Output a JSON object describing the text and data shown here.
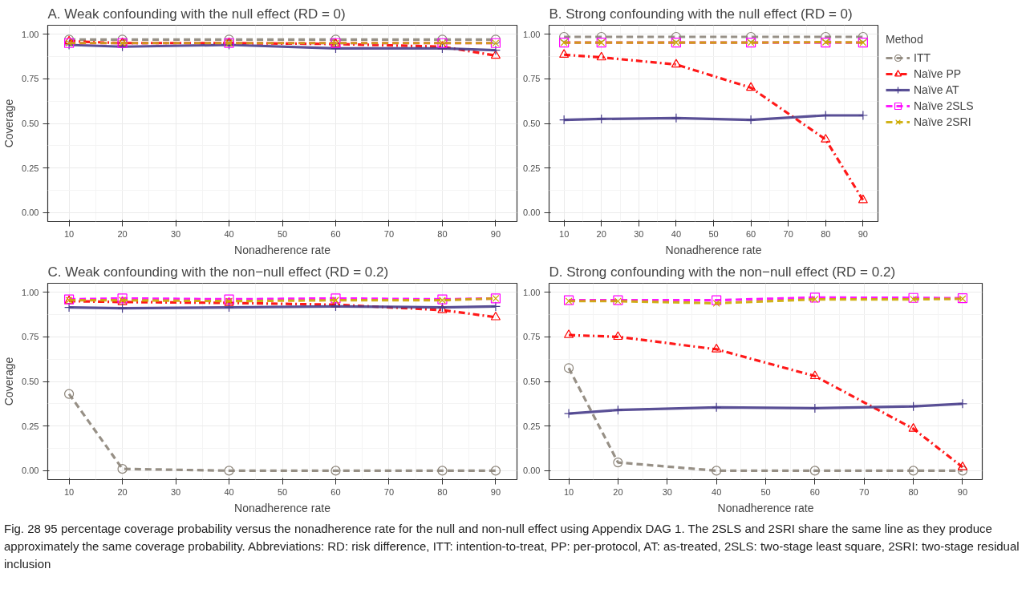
{
  "chart_data": [
    {
      "type": "line",
      "title": "A. Weak confounding with the null effect (RD = 0)",
      "xlabel": "Nonadherence rate",
      "ylabel": "Coverage",
      "x": [
        10,
        20,
        40,
        60,
        80,
        90
      ],
      "xlim": [
        6,
        94
      ],
      "xticks": [
        10,
        20,
        30,
        40,
        50,
        60,
        70,
        80,
        90
      ],
      "ylim": [
        -0.05,
        1.05
      ],
      "yticks": [
        {
          "value": 0,
          "label": "0.00"
        },
        {
          "value": 0.25,
          "label": "0.25"
        },
        {
          "value": 0.5,
          "label": "0.50"
        },
        {
          "value": 0.75,
          "label": "0.75"
        },
        {
          "value": 1,
          "label": "1.00"
        }
      ],
      "grid": true,
      "legend": false,
      "series": [
        {
          "color": "#8c8479",
          "line_style": "dashed",
          "marker": "circle",
          "values": [
            0.97,
            0.97,
            0.97,
            0.97,
            0.97,
            0.97
          ]
        },
        {
          "color": "#ff0000",
          "line_style": "dashdot",
          "marker": "triangle",
          "values": [
            0.96,
            0.95,
            0.95,
            0.945,
            0.93,
            0.88
          ]
        },
        {
          "color": "#483d8b",
          "line_style": "solid",
          "marker": "plus",
          "values": [
            0.94,
            0.93,
            0.94,
            0.92,
            0.92,
            0.91
          ]
        },
        {
          "color": "#ff00ff",
          "line_style": "dashed",
          "marker": "square",
          "values": [
            0.95,
            0.95,
            0.95,
            0.95,
            0.95,
            0.95
          ]
        },
        {
          "color": "#ccaa00",
          "line_style": "dashed",
          "marker": "cross",
          "values": [
            0.95,
            0.95,
            0.95,
            0.95,
            0.95,
            0.95
          ]
        }
      ]
    },
    {
      "type": "line",
      "title": "B. Strong confounding with the null effect (RD = 0)",
      "xlabel": "Nonadherence rate",
      "legend_title": "Method",
      "x": [
        10,
        20,
        40,
        60,
        80,
        90
      ],
      "xlim": [
        6,
        94
      ],
      "xticks": [
        10,
        20,
        30,
        40,
        50,
        60,
        70,
        80,
        90
      ],
      "ylim": [
        -0.05,
        1.05
      ],
      "yticks": [
        {
          "value": 0,
          "label": "0.00"
        },
        {
          "value": 0.25,
          "label": "0.25"
        },
        {
          "value": 0.5,
          "label": "0.50"
        },
        {
          "value": 0.75,
          "label": "0.75"
        },
        {
          "value": 1,
          "label": "1.00"
        }
      ],
      "grid": true,
      "legend": "right",
      "series": [
        {
          "name": "ITT",
          "color": "#8c8479",
          "line_style": "dashed",
          "marker": "circle",
          "values": [
            0.985,
            0.985,
            0.985,
            0.985,
            0.985,
            0.985
          ]
        },
        {
          "name": "Naïve PP",
          "color": "#ff0000",
          "line_style": "dashdot",
          "marker": "triangle",
          "values": [
            0.885,
            0.87,
            0.83,
            0.7,
            0.41,
            0.07
          ]
        },
        {
          "name": "Naïve AT",
          "color": "#483d8b",
          "line_style": "solid",
          "marker": "plus",
          "values": [
            0.52,
            0.525,
            0.53,
            0.52,
            0.545,
            0.545
          ]
        },
        {
          "name": "Naïve 2SLS",
          "color": "#ff00ff",
          "line_style": "dashed",
          "marker": "square",
          "values": [
            0.953,
            0.953,
            0.953,
            0.953,
            0.953,
            0.953
          ]
        },
        {
          "name": "Naïve 2SRI",
          "color": "#ccaa00",
          "line_style": "dashed",
          "marker": "cross",
          "values": [
            0.953,
            0.953,
            0.953,
            0.953,
            0.955,
            0.953
          ]
        }
      ]
    },
    {
      "type": "line",
      "title": "C. Weak confounding with the non−null effect (RD = 0.2)",
      "xlabel": "Nonadherence rate",
      "ylabel": "Coverage",
      "x": [
        10,
        20,
        40,
        60,
        80,
        90
      ],
      "xlim": [
        6,
        94
      ],
      "xticks": [
        10,
        20,
        30,
        40,
        50,
        60,
        70,
        80,
        90
      ],
      "ylim": [
        -0.05,
        1.05
      ],
      "yticks": [
        {
          "value": 0,
          "label": "0.00"
        },
        {
          "value": 0.25,
          "label": "0.25"
        },
        {
          "value": 0.5,
          "label": "0.50"
        },
        {
          "value": 0.75,
          "label": "0.75"
        },
        {
          "value": 1,
          "label": "1.00"
        }
      ],
      "grid": true,
      "legend": false,
      "series": [
        {
          "color": "#8c8479",
          "line_style": "dashed",
          "marker": "circle",
          "values": [
            0.43,
            0.01,
            0,
            0,
            0,
            0
          ]
        },
        {
          "color": "#ff0000",
          "line_style": "dashdot",
          "marker": "triangle",
          "values": [
            0.95,
            0.945,
            0.94,
            0.93,
            0.9,
            0.86
          ]
        },
        {
          "color": "#483d8b",
          "line_style": "solid",
          "marker": "plus",
          "values": [
            0.915,
            0.91,
            0.915,
            0.92,
            0.915,
            0.92
          ]
        },
        {
          "color": "#ff00ff",
          "line_style": "dashed",
          "marker": "square",
          "values": [
            0.96,
            0.965,
            0.96,
            0.965,
            0.96,
            0.965
          ]
        },
        {
          "color": "#ccaa00",
          "line_style": "dashed",
          "marker": "cross",
          "values": [
            0.955,
            0.955,
            0.95,
            0.955,
            0.955,
            0.965
          ]
        }
      ]
    },
    {
      "type": "line",
      "title": "D. Strong confounding with the non−null effect (RD = 0.2)",
      "xlabel": "Nonadherence rate",
      "x": [
        10,
        20,
        40,
        60,
        80,
        90
      ],
      "xlim": [
        6,
        94
      ],
      "xticks": [
        10,
        20,
        30,
        40,
        50,
        60,
        70,
        80,
        90
      ],
      "ylim": [
        -0.05,
        1.05
      ],
      "yticks": [
        {
          "value": 0,
          "label": "0.00"
        },
        {
          "value": 0.25,
          "label": "0.25"
        },
        {
          "value": 0.5,
          "label": "0.50"
        },
        {
          "value": 0.75,
          "label": "0.75"
        },
        {
          "value": 1,
          "label": "1.00"
        }
      ],
      "grid": true,
      "legend": false,
      "annotations": [
        "Fig. 28 95 percentage coverage probability versus the nonadherence rate for the null and non-null effect using Appendix DAG 1. The 2SLS and 2SRI share the same line as they produce approximately the same coverage probability. Abbreviations: RD: risk difference, ITT: intention-to-treat, PP: per-protocol, AT: as-treated, 2SLS: two-stage least square, 2SRI: two-stage residual inclusion"
      ],
      "series": [
        {
          "color": "#8c8479",
          "line_style": "dashed",
          "marker": "circle",
          "values": [
            0.575,
            0.046,
            0,
            0,
            0,
            0
          ]
        },
        {
          "color": "#ff0000",
          "line_style": "dashdot",
          "marker": "triangle",
          "values": [
            0.76,
            0.75,
            0.68,
            0.53,
            0.235,
            0.02
          ]
        },
        {
          "color": "#483d8b",
          "line_style": "solid",
          "marker": "plus",
          "values": [
            0.32,
            0.34,
            0.355,
            0.35,
            0.36,
            0.375
          ]
        },
        {
          "color": "#ff00ff",
          "line_style": "dashed",
          "marker": "square",
          "values": [
            0.955,
            0.955,
            0.955,
            0.97,
            0.968,
            0.966
          ]
        },
        {
          "color": "#ccaa00",
          "line_style": "dashed",
          "marker": "cross",
          "values": [
            0.95,
            0.95,
            0.938,
            0.96,
            0.96,
            0.963
          ]
        }
      ]
    }
  ]
}
